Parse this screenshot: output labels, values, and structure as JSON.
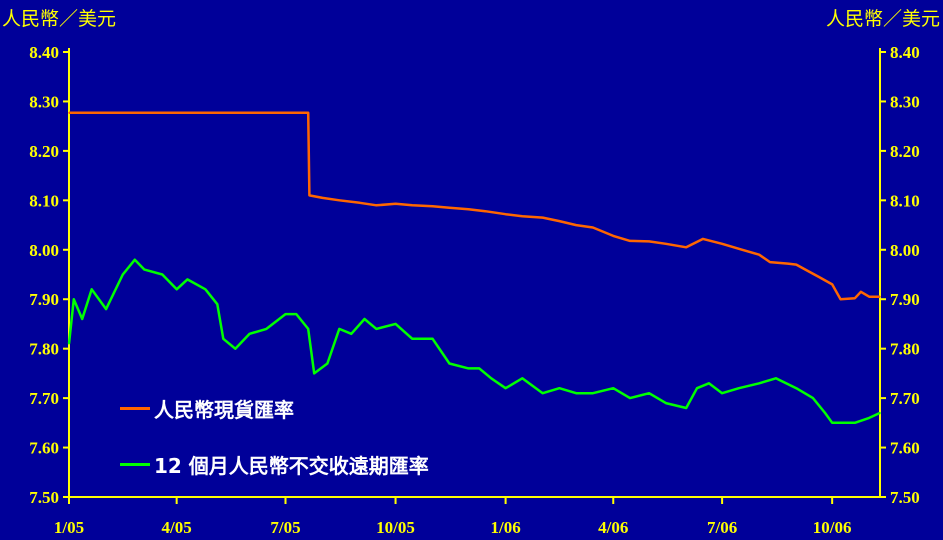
{
  "chart_data": {
    "type": "line",
    "y_unit_left": "人民幣／美元",
    "y_unit_right": "人民幣／美元",
    "xlim": [
      "2005-01-01",
      "2006-11-10"
    ],
    "ylim": [
      7.5,
      8.4
    ],
    "y_ticks": [
      "7.50",
      "7.60",
      "7.70",
      "7.80",
      "7.90",
      "8.00",
      "8.10",
      "8.20",
      "8.30",
      "8.40"
    ],
    "x_ticks": [
      {
        "label": "1/05",
        "date": "2005-01-01"
      },
      {
        "label": "4/05",
        "date": "2005-04-01"
      },
      {
        "label": "7/05",
        "date": "2005-07-01"
      },
      {
        "label": "10/05",
        "date": "2005-10-01"
      },
      {
        "label": "1/06",
        "date": "2006-01-01"
      },
      {
        "label": "4/06",
        "date": "2006-04-01"
      },
      {
        "label": "7/06",
        "date": "2006-07-01"
      },
      {
        "label": "10/06",
        "date": "2006-10-01"
      }
    ],
    "grid": false,
    "legend_position": "lower-left",
    "series": [
      {
        "name": "人民幣現貨匯率",
        "color": "#FF6600",
        "points": [
          [
            "2005-01-01",
            8.277
          ],
          [
            "2005-02-01",
            8.277
          ],
          [
            "2005-03-01",
            8.277
          ],
          [
            "2005-04-01",
            8.277
          ],
          [
            "2005-05-01",
            8.277
          ],
          [
            "2005-06-01",
            8.277
          ],
          [
            "2005-07-01",
            8.277
          ],
          [
            "2005-07-20",
            8.277
          ],
          [
            "2005-07-21",
            8.11
          ],
          [
            "2005-08-01",
            8.105
          ],
          [
            "2005-08-15",
            8.1
          ],
          [
            "2005-09-01",
            8.095
          ],
          [
            "2005-09-15",
            8.09
          ],
          [
            "2005-10-01",
            8.093
          ],
          [
            "2005-10-15",
            8.09
          ],
          [
            "2005-11-01",
            8.088
          ],
          [
            "2005-11-15",
            8.085
          ],
          [
            "2005-12-01",
            8.082
          ],
          [
            "2005-12-15",
            8.078
          ],
          [
            "2006-01-01",
            8.072
          ],
          [
            "2006-01-15",
            8.068
          ],
          [
            "2006-02-01",
            8.065
          ],
          [
            "2006-02-15",
            8.058
          ],
          [
            "2006-03-01",
            8.05
          ],
          [
            "2006-03-15",
            8.045
          ],
          [
            "2006-04-01",
            8.028
          ],
          [
            "2006-04-15",
            8.018
          ],
          [
            "2006-05-01",
            8.017
          ],
          [
            "2006-05-15",
            8.012
          ],
          [
            "2006-06-01",
            8.005
          ],
          [
            "2006-06-15",
            8.022
          ],
          [
            "2006-07-01",
            8.012
          ],
          [
            "2006-07-15",
            8.002
          ],
          [
            "2006-08-01",
            7.99
          ],
          [
            "2006-08-10",
            7.975
          ],
          [
            "2006-08-25",
            7.972
          ],
          [
            "2006-09-01",
            7.97
          ],
          [
            "2006-09-10",
            7.958
          ],
          [
            "2006-09-20",
            7.945
          ],
          [
            "2006-10-01",
            7.93
          ],
          [
            "2006-10-08",
            7.9
          ],
          [
            "2006-10-20",
            7.902
          ],
          [
            "2006-10-25",
            7.915
          ],
          [
            "2006-11-01",
            7.905
          ],
          [
            "2006-11-10",
            7.905
          ]
        ]
      },
      {
        "name": "12 個月人民幣不交收遠期匯率",
        "color": "#00FF00",
        "points": [
          [
            "2005-01-01",
            7.81
          ],
          [
            "2005-01-05",
            7.9
          ],
          [
            "2005-01-12",
            7.86
          ],
          [
            "2005-01-20",
            7.92
          ],
          [
            "2005-02-01",
            7.88
          ],
          [
            "2005-02-15",
            7.95
          ],
          [
            "2005-02-25",
            7.98
          ],
          [
            "2005-03-05",
            7.96
          ],
          [
            "2005-03-20",
            7.95
          ],
          [
            "2005-04-01",
            7.92
          ],
          [
            "2005-04-10",
            7.94
          ],
          [
            "2005-04-25",
            7.92
          ],
          [
            "2005-05-05",
            7.89
          ],
          [
            "2005-05-10",
            7.82
          ],
          [
            "2005-05-20",
            7.8
          ],
          [
            "2005-06-01",
            7.83
          ],
          [
            "2005-06-15",
            7.84
          ],
          [
            "2005-07-01",
            7.87
          ],
          [
            "2005-07-10",
            7.87
          ],
          [
            "2005-07-20",
            7.84
          ],
          [
            "2005-07-25",
            7.75
          ],
          [
            "2005-08-05",
            7.77
          ],
          [
            "2005-08-15",
            7.84
          ],
          [
            "2005-08-25",
            7.83
          ],
          [
            "2005-09-05",
            7.86
          ],
          [
            "2005-09-15",
            7.84
          ],
          [
            "2005-10-01",
            7.85
          ],
          [
            "2005-10-15",
            7.82
          ],
          [
            "2005-11-01",
            7.82
          ],
          [
            "2005-11-15",
            7.77
          ],
          [
            "2005-12-01",
            7.76
          ],
          [
            "2005-12-10",
            7.76
          ],
          [
            "2005-12-20",
            7.74
          ],
          [
            "2006-01-01",
            7.72
          ],
          [
            "2006-01-15",
            7.74
          ],
          [
            "2006-02-01",
            7.71
          ],
          [
            "2006-02-15",
            7.72
          ],
          [
            "2006-03-01",
            7.71
          ],
          [
            "2006-03-15",
            7.71
          ],
          [
            "2006-04-01",
            7.72
          ],
          [
            "2006-04-15",
            7.7
          ],
          [
            "2006-05-01",
            7.71
          ],
          [
            "2006-05-15",
            7.69
          ],
          [
            "2006-06-01",
            7.68
          ],
          [
            "2006-06-10",
            7.72
          ],
          [
            "2006-06-20",
            7.73
          ],
          [
            "2006-07-01",
            7.71
          ],
          [
            "2006-07-15",
            7.72
          ],
          [
            "2006-08-01",
            7.73
          ],
          [
            "2006-08-15",
            7.74
          ],
          [
            "2006-09-01",
            7.72
          ],
          [
            "2006-09-15",
            7.7
          ],
          [
            "2006-09-25",
            7.67
          ],
          [
            "2006-10-01",
            7.65
          ],
          [
            "2006-10-20",
            7.65
          ],
          [
            "2006-11-01",
            7.66
          ],
          [
            "2006-11-10",
            7.67
          ]
        ]
      }
    ]
  }
}
